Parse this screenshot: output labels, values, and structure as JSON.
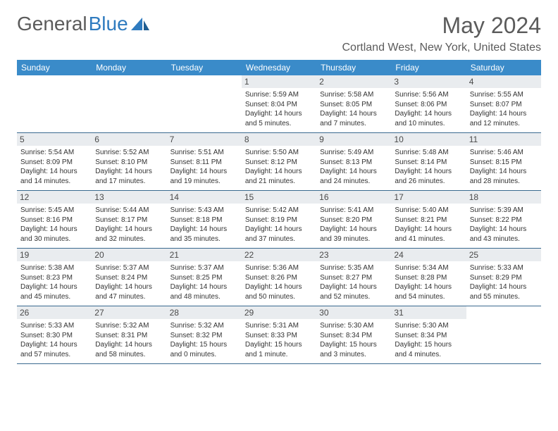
{
  "logo": {
    "text1": "General",
    "text2": "Blue"
  },
  "title": "May 2024",
  "location": "Cortland West, New York, United States",
  "colors": {
    "header_bg": "#3a8bc9",
    "header_text": "#ffffff",
    "daynum_bg": "#e9ecef",
    "border": "#3a6a8f",
    "body_text": "#333333",
    "muted": "#5b5b5b",
    "logo_blue": "#2f7bbf"
  },
  "day_names": [
    "Sunday",
    "Monday",
    "Tuesday",
    "Wednesday",
    "Thursday",
    "Friday",
    "Saturday"
  ],
  "weeks": [
    [
      null,
      null,
      null,
      {
        "n": "1",
        "sr": "Sunrise: 5:59 AM",
        "ss": "Sunset: 8:04 PM",
        "d1": "Daylight: 14 hours",
        "d2": "and 5 minutes."
      },
      {
        "n": "2",
        "sr": "Sunrise: 5:58 AM",
        "ss": "Sunset: 8:05 PM",
        "d1": "Daylight: 14 hours",
        "d2": "and 7 minutes."
      },
      {
        "n": "3",
        "sr": "Sunrise: 5:56 AM",
        "ss": "Sunset: 8:06 PM",
        "d1": "Daylight: 14 hours",
        "d2": "and 10 minutes."
      },
      {
        "n": "4",
        "sr": "Sunrise: 5:55 AM",
        "ss": "Sunset: 8:07 PM",
        "d1": "Daylight: 14 hours",
        "d2": "and 12 minutes."
      }
    ],
    [
      {
        "n": "5",
        "sr": "Sunrise: 5:54 AM",
        "ss": "Sunset: 8:09 PM",
        "d1": "Daylight: 14 hours",
        "d2": "and 14 minutes."
      },
      {
        "n": "6",
        "sr": "Sunrise: 5:52 AM",
        "ss": "Sunset: 8:10 PM",
        "d1": "Daylight: 14 hours",
        "d2": "and 17 minutes."
      },
      {
        "n": "7",
        "sr": "Sunrise: 5:51 AM",
        "ss": "Sunset: 8:11 PM",
        "d1": "Daylight: 14 hours",
        "d2": "and 19 minutes."
      },
      {
        "n": "8",
        "sr": "Sunrise: 5:50 AM",
        "ss": "Sunset: 8:12 PM",
        "d1": "Daylight: 14 hours",
        "d2": "and 21 minutes."
      },
      {
        "n": "9",
        "sr": "Sunrise: 5:49 AM",
        "ss": "Sunset: 8:13 PM",
        "d1": "Daylight: 14 hours",
        "d2": "and 24 minutes."
      },
      {
        "n": "10",
        "sr": "Sunrise: 5:48 AM",
        "ss": "Sunset: 8:14 PM",
        "d1": "Daylight: 14 hours",
        "d2": "and 26 minutes."
      },
      {
        "n": "11",
        "sr": "Sunrise: 5:46 AM",
        "ss": "Sunset: 8:15 PM",
        "d1": "Daylight: 14 hours",
        "d2": "and 28 minutes."
      }
    ],
    [
      {
        "n": "12",
        "sr": "Sunrise: 5:45 AM",
        "ss": "Sunset: 8:16 PM",
        "d1": "Daylight: 14 hours",
        "d2": "and 30 minutes."
      },
      {
        "n": "13",
        "sr": "Sunrise: 5:44 AM",
        "ss": "Sunset: 8:17 PM",
        "d1": "Daylight: 14 hours",
        "d2": "and 32 minutes."
      },
      {
        "n": "14",
        "sr": "Sunrise: 5:43 AM",
        "ss": "Sunset: 8:18 PM",
        "d1": "Daylight: 14 hours",
        "d2": "and 35 minutes."
      },
      {
        "n": "15",
        "sr": "Sunrise: 5:42 AM",
        "ss": "Sunset: 8:19 PM",
        "d1": "Daylight: 14 hours",
        "d2": "and 37 minutes."
      },
      {
        "n": "16",
        "sr": "Sunrise: 5:41 AM",
        "ss": "Sunset: 8:20 PM",
        "d1": "Daylight: 14 hours",
        "d2": "and 39 minutes."
      },
      {
        "n": "17",
        "sr": "Sunrise: 5:40 AM",
        "ss": "Sunset: 8:21 PM",
        "d1": "Daylight: 14 hours",
        "d2": "and 41 minutes."
      },
      {
        "n": "18",
        "sr": "Sunrise: 5:39 AM",
        "ss": "Sunset: 8:22 PM",
        "d1": "Daylight: 14 hours",
        "d2": "and 43 minutes."
      }
    ],
    [
      {
        "n": "19",
        "sr": "Sunrise: 5:38 AM",
        "ss": "Sunset: 8:23 PM",
        "d1": "Daylight: 14 hours",
        "d2": "and 45 minutes."
      },
      {
        "n": "20",
        "sr": "Sunrise: 5:37 AM",
        "ss": "Sunset: 8:24 PM",
        "d1": "Daylight: 14 hours",
        "d2": "and 47 minutes."
      },
      {
        "n": "21",
        "sr": "Sunrise: 5:37 AM",
        "ss": "Sunset: 8:25 PM",
        "d1": "Daylight: 14 hours",
        "d2": "and 48 minutes."
      },
      {
        "n": "22",
        "sr": "Sunrise: 5:36 AM",
        "ss": "Sunset: 8:26 PM",
        "d1": "Daylight: 14 hours",
        "d2": "and 50 minutes."
      },
      {
        "n": "23",
        "sr": "Sunrise: 5:35 AM",
        "ss": "Sunset: 8:27 PM",
        "d1": "Daylight: 14 hours",
        "d2": "and 52 minutes."
      },
      {
        "n": "24",
        "sr": "Sunrise: 5:34 AM",
        "ss": "Sunset: 8:28 PM",
        "d1": "Daylight: 14 hours",
        "d2": "and 54 minutes."
      },
      {
        "n": "25",
        "sr": "Sunrise: 5:33 AM",
        "ss": "Sunset: 8:29 PM",
        "d1": "Daylight: 14 hours",
        "d2": "and 55 minutes."
      }
    ],
    [
      {
        "n": "26",
        "sr": "Sunrise: 5:33 AM",
        "ss": "Sunset: 8:30 PM",
        "d1": "Daylight: 14 hours",
        "d2": "and 57 minutes."
      },
      {
        "n": "27",
        "sr": "Sunrise: 5:32 AM",
        "ss": "Sunset: 8:31 PM",
        "d1": "Daylight: 14 hours",
        "d2": "and 58 minutes."
      },
      {
        "n": "28",
        "sr": "Sunrise: 5:32 AM",
        "ss": "Sunset: 8:32 PM",
        "d1": "Daylight: 15 hours",
        "d2": "and 0 minutes."
      },
      {
        "n": "29",
        "sr": "Sunrise: 5:31 AM",
        "ss": "Sunset: 8:33 PM",
        "d1": "Daylight: 15 hours",
        "d2": "and 1 minute."
      },
      {
        "n": "30",
        "sr": "Sunrise: 5:30 AM",
        "ss": "Sunset: 8:34 PM",
        "d1": "Daylight: 15 hours",
        "d2": "and 3 minutes."
      },
      {
        "n": "31",
        "sr": "Sunrise: 5:30 AM",
        "ss": "Sunset: 8:34 PM",
        "d1": "Daylight: 15 hours",
        "d2": "and 4 minutes."
      },
      null
    ]
  ]
}
